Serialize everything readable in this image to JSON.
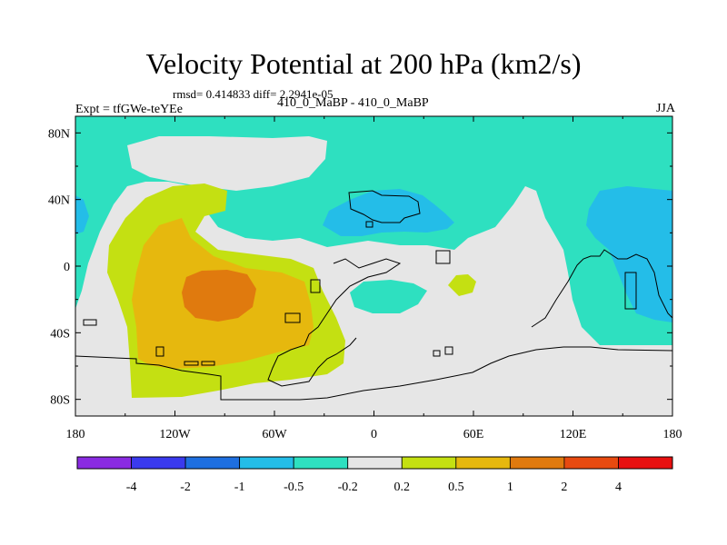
{
  "chart_data": {
    "type": "heatmap",
    "title": "Velocity Potential at 200 hPa (km2/s)",
    "stats_text": "rmsd= 0.414833 diff= 2.2941e-05",
    "left_string": "Expt = tfGWe-teYEe",
    "center_string": "410_0_MaBP - 410_0_MaBP",
    "right_string": "JJA",
    "x_ticks": [
      "180",
      "120W",
      "60W",
      "0",
      "60E",
      "120E",
      "180"
    ],
    "x_tick_values": [
      -180,
      -120,
      -60,
      0,
      60,
      120,
      180
    ],
    "y_ticks": [
      "80N",
      "40N",
      "0",
      "40S",
      "80S"
    ],
    "y_tick_values": [
      80,
      40,
      0,
      -40,
      -80
    ],
    "xlim": [
      -180,
      180
    ],
    "ylim": [
      -90,
      90
    ],
    "colorbar": {
      "levels": [
        "-4",
        "-2",
        "-1",
        "-0.5",
        "-0.2",
        "0.2",
        "0.5",
        "1",
        "2",
        "4"
      ],
      "colors": [
        "#8a2be2",
        "#3a3aee",
        "#1e6fe0",
        "#24bde8",
        "#2ee0c0",
        "#e6e6e6",
        "#c4e012",
        "#e6b80e",
        "#e07a0e",
        "#e84a10",
        "#e81010"
      ]
    },
    "fields": [
      {
        "range": "-0.5 to -0.2",
        "color": "#2ee0c0",
        "note": "background over most of the high latitudes and the tropics"
      },
      {
        "range": "-0.2 to 0.2",
        "color": "#e6e6e6",
        "note": "eastern hemisphere and southern regions"
      },
      {
        "range": "0.2 to 0.5",
        "color": "#c4e012",
        "note": "eastern Pacific / South America"
      },
      {
        "range": "0.5 to 1",
        "color": "#e6b80e",
        "note": "southeast Pacific"
      },
      {
        "range": "1 to 2",
        "color": "#e07a0e",
        "note": "maximum near 100W, 20S"
      },
      {
        "range": "-1 to -0.5",
        "color": "#24bde8",
        "note": "minima over 30N 20E and the western Pacific"
      }
    ]
  }
}
